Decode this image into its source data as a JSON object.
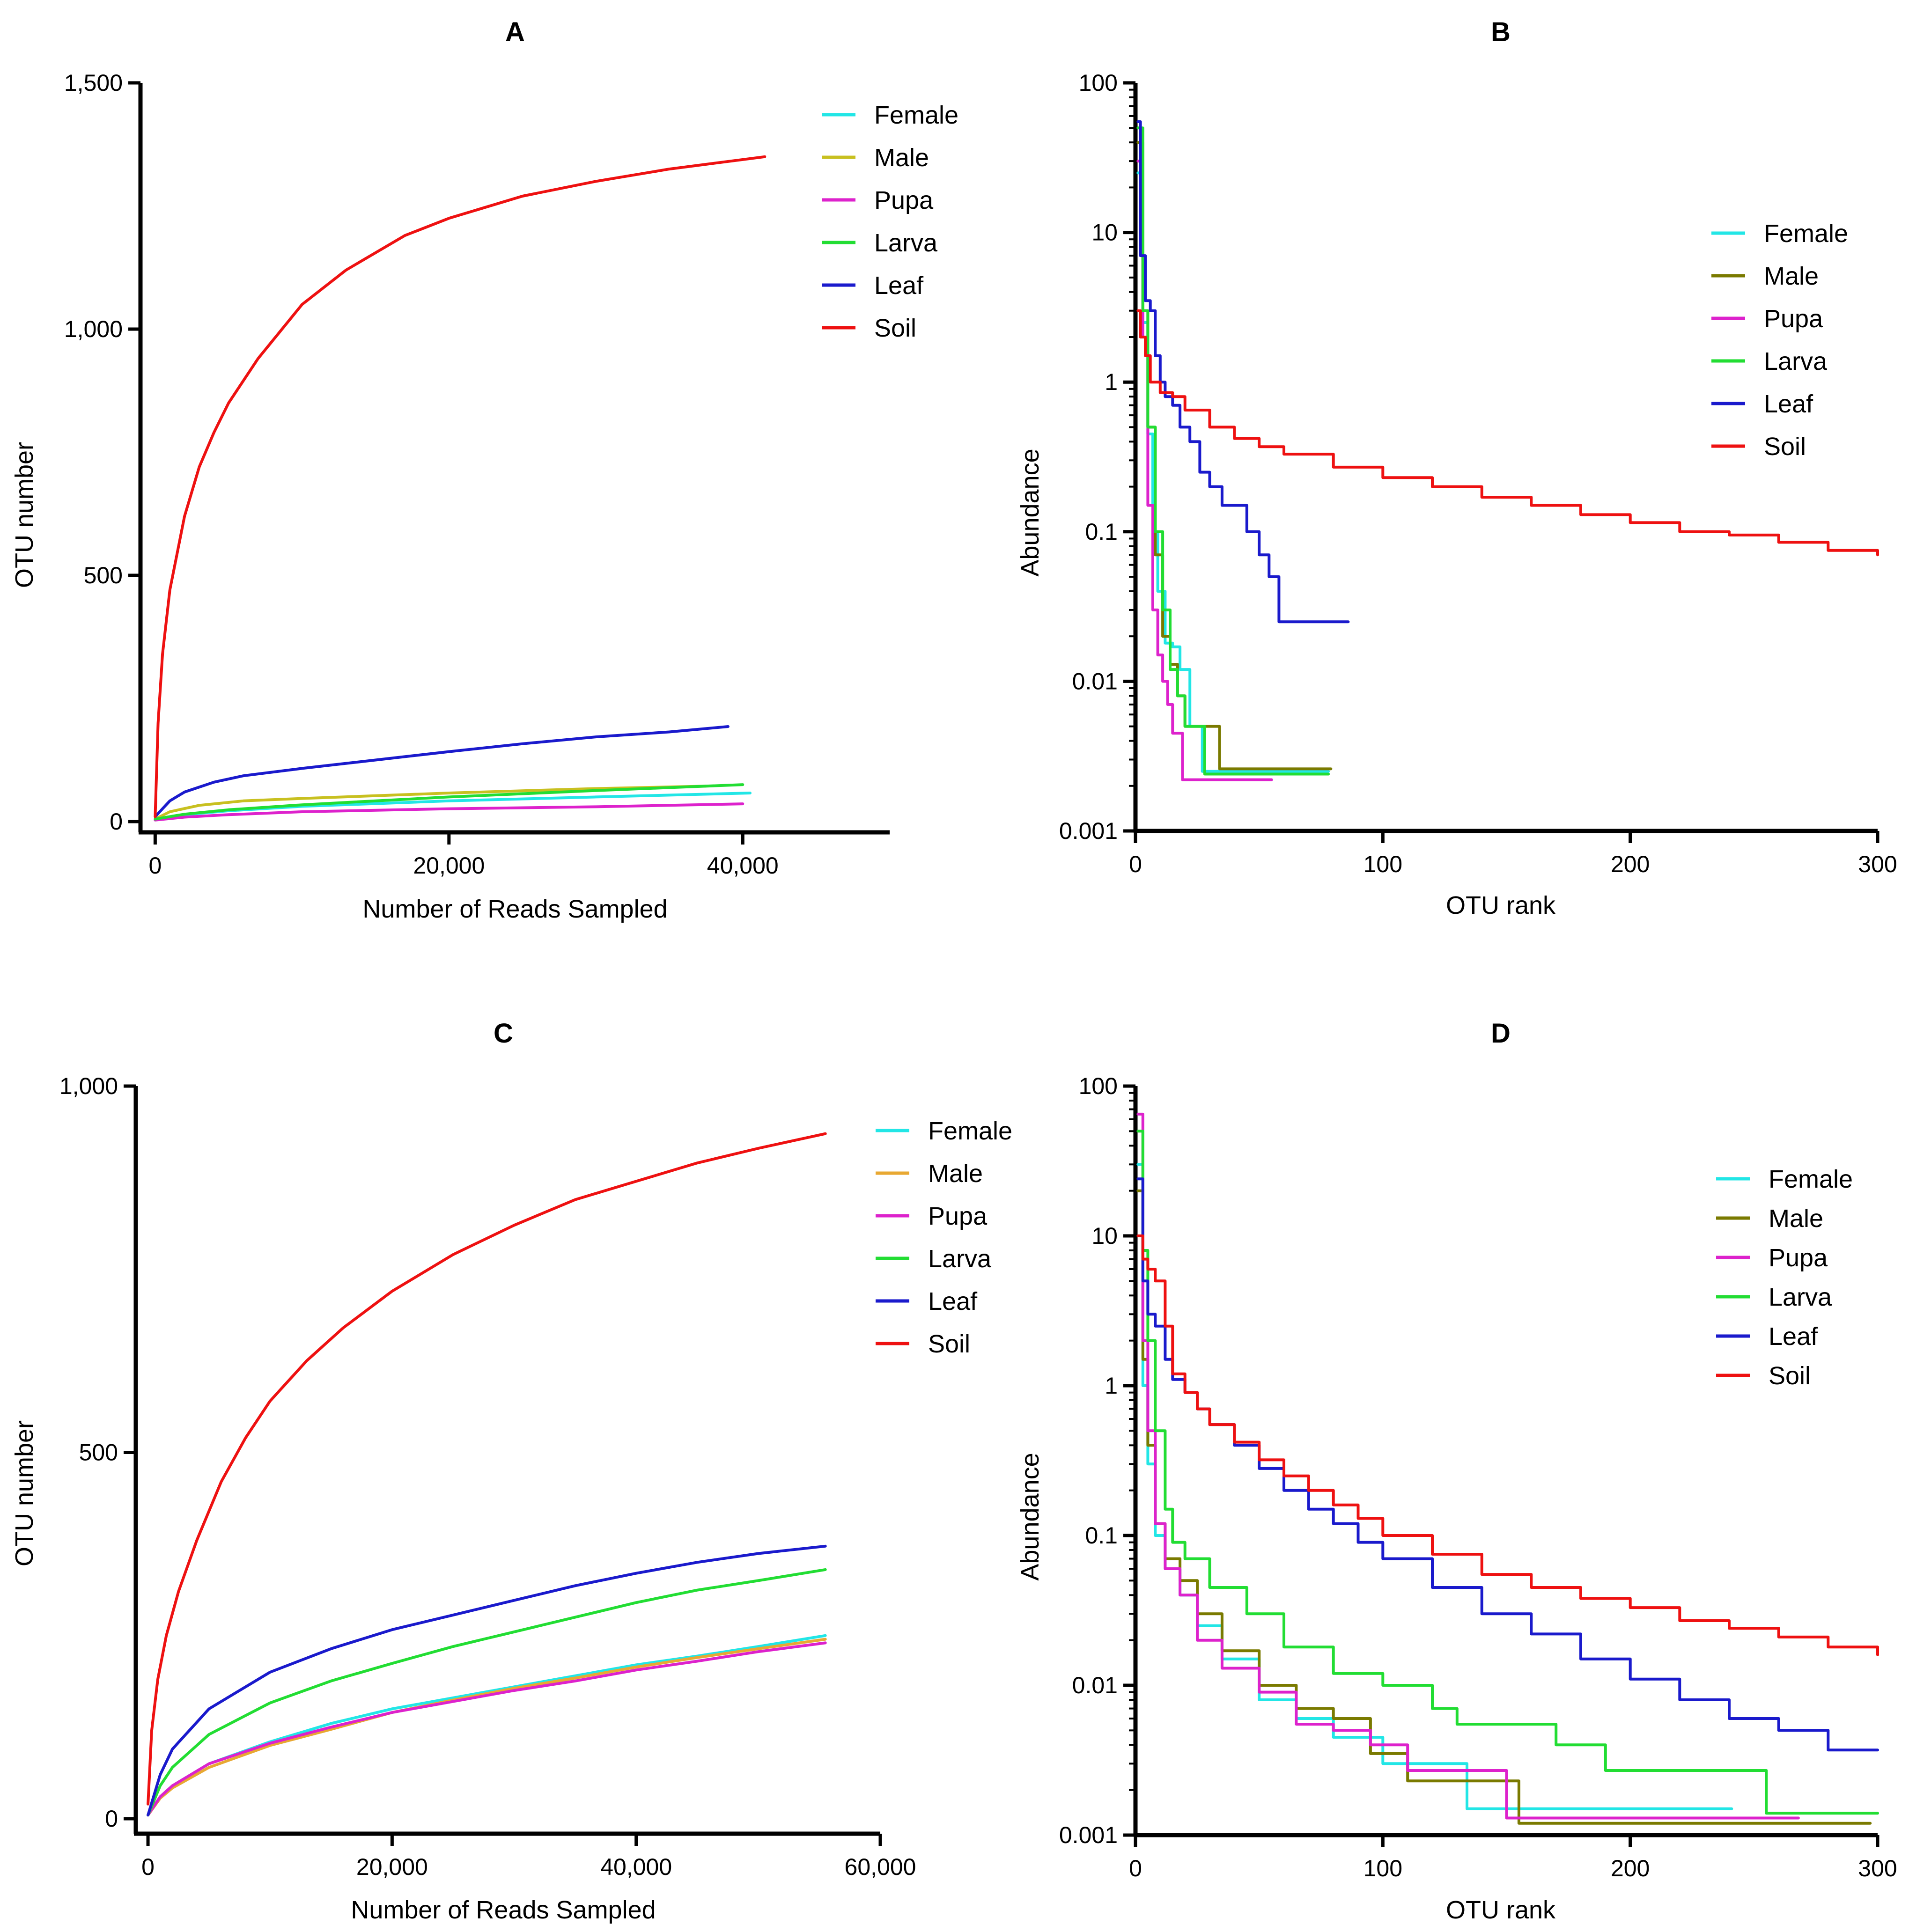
{
  "figure": {
    "colors": {
      "Female": "#22e6e6",
      "Male_rare": "#c8c020",
      "Male_rank": "#7a7a00",
      "Male_C": "#e8a832",
      "Pupa": "#dd22cc",
      "Larva": "#22dd33",
      "Leaf": "#1a1acc",
      "Soil": "#ee1111",
      "axis": "#000000"
    }
  },
  "chart_data": [
    {
      "id": "A",
      "type": "line",
      "title": "A",
      "xlabel": "Number of Reads Sampled",
      "ylabel": "OTU number",
      "xlim": [
        -1000,
        50000
      ],
      "ylim": [
        0,
        1500
      ],
      "xticks": [
        0,
        20000,
        40000
      ],
      "xtick_labels": [
        "0",
        "20,000",
        "40,000"
      ],
      "yticks": [
        0,
        500,
        1000,
        1500
      ],
      "ytick_labels": [
        "0",
        "500",
        "1,000",
        "1,500"
      ],
      "legend": [
        "Female",
        "Male",
        "Pupa",
        "Larva",
        "Leaf",
        "Soil"
      ],
      "legend_position": "top-right",
      "series": [
        {
          "name": "Female",
          "color_key": "Female",
          "x": [
            0,
            2000,
            5000,
            10000,
            20000,
            30000,
            40500
          ],
          "y": [
            5,
            14,
            22,
            31,
            42,
            50,
            58
          ]
        },
        {
          "name": "Male",
          "color_key": "Male_rare",
          "x": [
            0,
            1000,
            3000,
            6000,
            10000,
            20000,
            30000,
            37500
          ],
          "y": [
            5,
            20,
            33,
            42,
            47,
            58,
            67,
            72
          ]
        },
        {
          "name": "Pupa",
          "color_key": "Pupa",
          "x": [
            0,
            2000,
            5000,
            10000,
            20000,
            30000,
            40000
          ],
          "y": [
            3,
            9,
            14,
            20,
            26,
            30,
            36
          ]
        },
        {
          "name": "Larva",
          "color_key": "Larva",
          "x": [
            0,
            2000,
            5000,
            10000,
            20000,
            30000,
            40000
          ],
          "y": [
            5,
            15,
            24,
            34,
            50,
            63,
            75
          ]
        },
        {
          "name": "Leaf",
          "color_key": "Leaf",
          "x": [
            0,
            1000,
            2000,
            4000,
            6000,
            10000,
            15000,
            20000,
            25000,
            30000,
            35000,
            39000
          ],
          "y": [
            10,
            42,
            60,
            80,
            93,
            108,
            125,
            142,
            158,
            172,
            182,
            193
          ]
        },
        {
          "name": "Soil",
          "color_key": "Soil",
          "x": [
            0,
            200,
            500,
            1000,
            2000,
            3000,
            4000,
            5000,
            7000,
            10000,
            13000,
            17000,
            20000,
            25000,
            30000,
            35000,
            41500
          ],
          "y": [
            10,
            200,
            340,
            470,
            620,
            720,
            790,
            850,
            940,
            1050,
            1120,
            1190,
            1225,
            1270,
            1300,
            1325,
            1350
          ]
        }
      ]
    },
    {
      "id": "B",
      "type": "line",
      "title": "B",
      "xlabel": "OTU rank",
      "ylabel": "Abundance",
      "yscale": "log",
      "xlim": [
        0,
        300
      ],
      "ylim": [
        0.001,
        100
      ],
      "xticks": [
        0,
        100,
        200,
        300
      ],
      "xtick_labels": [
        "0",
        "100",
        "200",
        "300"
      ],
      "yticks": [
        0.001,
        0.01,
        0.1,
        1,
        10,
        100
      ],
      "ytick_labels": [
        "0.001",
        "0.01",
        "0.1",
        "1",
        "10",
        "100"
      ],
      "legend": [
        "Female",
        "Male",
        "Pupa",
        "Larva",
        "Leaf",
        "Soil"
      ],
      "legend_position": "top-right",
      "series": [
        {
          "name": "Female",
          "color_key": "Female",
          "x": [
            1,
            3,
            5,
            7,
            9,
            12,
            15,
            18,
            22,
            25,
            27,
            78
          ],
          "y": [
            25,
            2.5,
            0.45,
            0.1,
            0.04,
            0.018,
            0.017,
            0.012,
            0.005,
            0.005,
            0.0025,
            0.0025
          ]
        },
        {
          "name": "Male",
          "color_key": "Male_rank",
          "x": [
            1,
            3,
            5,
            8,
            11,
            14,
            17,
            20,
            23,
            26,
            29,
            32,
            34,
            79
          ],
          "y": [
            40,
            3,
            0.5,
            0.07,
            0.02,
            0.013,
            0.008,
            0.005,
            0.005,
            0.005,
            0.005,
            0.005,
            0.0026,
            0.0026
          ]
        },
        {
          "name": "Pupa",
          "color_key": "Pupa",
          "x": [
            1,
            3,
            5,
            7,
            9,
            11,
            13,
            15,
            17,
            19,
            21,
            55
          ],
          "y": [
            30,
            2,
            0.15,
            0.03,
            0.015,
            0.01,
            0.007,
            0.0045,
            0.0045,
            0.0022,
            0.0022,
            0.0022
          ]
        },
        {
          "name": "Larva",
          "color_key": "Larva",
          "x": [
            1,
            3,
            5,
            8,
            11,
            14,
            17,
            20,
            24,
            28,
            32,
            78
          ],
          "y": [
            50,
            3,
            0.5,
            0.1,
            0.03,
            0.012,
            0.008,
            0.005,
            0.005,
            0.0024,
            0.0024,
            0.0024
          ]
        },
        {
          "name": "Leaf",
          "color_key": "Leaf",
          "x": [
            1,
            2,
            4,
            6,
            8,
            10,
            12,
            15,
            18,
            22,
            26,
            30,
            35,
            40,
            45,
            50,
            54,
            58,
            62,
            70,
            86
          ],
          "y": [
            55,
            7,
            3.5,
            3,
            1.5,
            1,
            0.8,
            0.7,
            0.5,
            0.4,
            0.25,
            0.2,
            0.15,
            0.15,
            0.1,
            0.07,
            0.05,
            0.025,
            0.025,
            0.025,
            0.025
          ]
        },
        {
          "name": "Soil",
          "color_key": "Soil",
          "x": [
            1,
            2,
            4,
            6,
            10,
            15,
            20,
            30,
            40,
            50,
            60,
            80,
            100,
            120,
            140,
            160,
            180,
            200,
            220,
            240,
            260,
            280,
            300
          ],
          "y": [
            3,
            2,
            1.5,
            1,
            0.85,
            0.8,
            0.65,
            0.5,
            0.42,
            0.37,
            0.33,
            0.27,
            0.23,
            0.2,
            0.17,
            0.15,
            0.13,
            0.115,
            0.1,
            0.095,
            0.085,
            0.075,
            0.07
          ]
        }
      ]
    },
    {
      "id": "C",
      "type": "line",
      "title": "C",
      "xlabel": "Number of Reads Sampled",
      "ylabel": "OTU number",
      "xlim": [
        -1000,
        60000
      ],
      "ylim": [
        0,
        1000
      ],
      "xticks": [
        0,
        20000,
        40000,
        60000
      ],
      "xtick_labels": [
        "0",
        "20,000",
        "40,000",
        "60,000"
      ],
      "yticks": [
        0,
        500,
        1000
      ],
      "ytick_labels": [
        "0",
        "500",
        "1,000"
      ],
      "legend": [
        "Female",
        "Male",
        "Pupa",
        "Larva",
        "Leaf",
        "Soil"
      ],
      "legend_position": "top-right",
      "series": [
        {
          "name": "Female",
          "color_key": "Female",
          "x": [
            0,
            1000,
            2000,
            5000,
            10000,
            15000,
            20000,
            25000,
            30000,
            35000,
            40000,
            45000,
            50000,
            55500
          ],
          "y": [
            5,
            30,
            45,
            75,
            105,
            130,
            150,
            165,
            180,
            195,
            210,
            222,
            235,
            250
          ]
        },
        {
          "name": "Male",
          "color_key": "Male_C",
          "x": [
            0,
            1000,
            2000,
            5000,
            10000,
            15000,
            20000,
            25000,
            30000,
            35000,
            40000,
            45000,
            50000,
            55500
          ],
          "y": [
            5,
            28,
            42,
            70,
            100,
            122,
            145,
            162,
            178,
            192,
            207,
            220,
            232,
            245
          ]
        },
        {
          "name": "Pupa",
          "color_key": "Pupa",
          "x": [
            0,
            1000,
            2000,
            5000,
            10000,
            15000,
            20000,
            25000,
            30000,
            35000,
            40000,
            45000,
            50000,
            55500
          ],
          "y": [
            5,
            30,
            45,
            75,
            103,
            125,
            145,
            160,
            175,
            188,
            203,
            215,
            228,
            240
          ]
        },
        {
          "name": "Larva",
          "color_key": "Larva",
          "x": [
            0,
            1000,
            2000,
            5000,
            10000,
            15000,
            20000,
            25000,
            30000,
            35000,
            40000,
            45000,
            50000,
            55500
          ],
          "y": [
            5,
            45,
            70,
            115,
            158,
            188,
            212,
            235,
            255,
            275,
            295,
            312,
            325,
            340
          ]
        },
        {
          "name": "Leaf",
          "color_key": "Leaf",
          "x": [
            0,
            1000,
            2000,
            5000,
            10000,
            15000,
            20000,
            25000,
            30000,
            35000,
            40000,
            45000,
            50000,
            55500
          ],
          "y": [
            5,
            60,
            95,
            150,
            200,
            232,
            258,
            278,
            298,
            318,
            335,
            350,
            362,
            372
          ]
        },
        {
          "name": "Soil",
          "color_key": "Soil",
          "x": [
            0,
            300,
            800,
            1500,
            2500,
            4000,
            6000,
            8000,
            10000,
            13000,
            16000,
            20000,
            25000,
            30000,
            35000,
            40000,
            45000,
            50000,
            55500
          ],
          "y": [
            20,
            120,
            190,
            250,
            310,
            380,
            460,
            520,
            570,
            625,
            670,
            720,
            770,
            810,
            845,
            870,
            895,
            915,
            935
          ]
        }
      ]
    },
    {
      "id": "D",
      "type": "line",
      "title": "D",
      "xlabel": "OTU rank",
      "ylabel": "Abundance",
      "yscale": "log",
      "xlim": [
        0,
        300
      ],
      "ylim": [
        0.001,
        100
      ],
      "xticks": [
        0,
        100,
        200,
        300
      ],
      "xtick_labels": [
        "0",
        "100",
        "200",
        "300"
      ],
      "yticks": [
        0.001,
        0.01,
        0.1,
        1,
        10,
        100
      ],
      "ytick_labels": [
        "0.001",
        "0.01",
        "0.1",
        "1",
        "10",
        "100"
      ],
      "legend": [
        "Female",
        "Male",
        "Pupa",
        "Larva",
        "Leaf",
        "Soil"
      ],
      "legend_position": "top-right",
      "series": [
        {
          "name": "Female",
          "color_key": "Female",
          "x": [
            1,
            3,
            5,
            8,
            12,
            18,
            25,
            35,
            50,
            65,
            80,
            100,
            120,
            134,
            160,
            200,
            241
          ],
          "y": [
            30,
            1,
            0.3,
            0.1,
            0.06,
            0.04,
            0.025,
            0.015,
            0.008,
            0.006,
            0.0045,
            0.003,
            0.003,
            0.0015,
            0.0015,
            0.0015,
            0.0015
          ]
        },
        {
          "name": "Male",
          "color_key": "Male_rank",
          "x": [
            1,
            3,
            5,
            8,
            12,
            18,
            25,
            35,
            50,
            65,
            80,
            95,
            110,
            130,
            155,
            200,
            250,
            297
          ],
          "y": [
            20,
            1.5,
            0.4,
            0.12,
            0.07,
            0.05,
            0.03,
            0.017,
            0.01,
            0.007,
            0.006,
            0.0035,
            0.0023,
            0.0023,
            0.0012,
            0.0012,
            0.0012,
            0.0012
          ]
        },
        {
          "name": "Pupa",
          "color_key": "Pupa",
          "x": [
            1,
            3,
            5,
            8,
            12,
            18,
            25,
            35,
            50,
            65,
            80,
            95,
            110,
            130,
            150,
            200,
            250,
            268
          ],
          "y": [
            65,
            2,
            0.5,
            0.12,
            0.06,
            0.04,
            0.02,
            0.013,
            0.009,
            0.0055,
            0.005,
            0.004,
            0.0027,
            0.0027,
            0.0013,
            0.0013,
            0.0013,
            0.0013
          ]
        },
        {
          "name": "Larva",
          "color_key": "Larva",
          "x": [
            1,
            3,
            5,
            8,
            12,
            15,
            20,
            30,
            45,
            60,
            80,
            100,
            120,
            130,
            150,
            170,
            190,
            230,
            255,
            280,
            300
          ],
          "y": [
            50,
            8,
            2,
            0.5,
            0.15,
            0.09,
            0.07,
            0.045,
            0.03,
            0.018,
            0.012,
            0.01,
            0.007,
            0.0055,
            0.0055,
            0.004,
            0.0027,
            0.0027,
            0.0014,
            0.0014,
            0.0014
          ]
        },
        {
          "name": "Leaf",
          "color_key": "Leaf",
          "x": [
            1,
            3,
            5,
            8,
            12,
            15,
            20,
            25,
            30,
            40,
            50,
            60,
            70,
            80,
            90,
            100,
            120,
            140,
            160,
            180,
            200,
            220,
            240,
            260,
            280,
            300
          ],
          "y": [
            24,
            5,
            3,
            2.5,
            1.5,
            1.1,
            0.9,
            0.7,
            0.55,
            0.4,
            0.28,
            0.2,
            0.15,
            0.12,
            0.09,
            0.07,
            0.045,
            0.03,
            0.022,
            0.015,
            0.011,
            0.008,
            0.006,
            0.005,
            0.0037,
            0.0037
          ]
        },
        {
          "name": "Soil",
          "color_key": "Soil",
          "x": [
            1,
            3,
            5,
            8,
            12,
            15,
            20,
            25,
            30,
            40,
            50,
            60,
            70,
            80,
            90,
            100,
            120,
            140,
            160,
            180,
            200,
            220,
            240,
            260,
            280,
            300
          ],
          "y": [
            10,
            7,
            6,
            5,
            2.5,
            1.2,
            0.9,
            0.7,
            0.55,
            0.42,
            0.32,
            0.25,
            0.2,
            0.16,
            0.13,
            0.1,
            0.075,
            0.055,
            0.045,
            0.038,
            0.033,
            0.027,
            0.024,
            0.021,
            0.018,
            0.016
          ]
        }
      ]
    }
  ]
}
